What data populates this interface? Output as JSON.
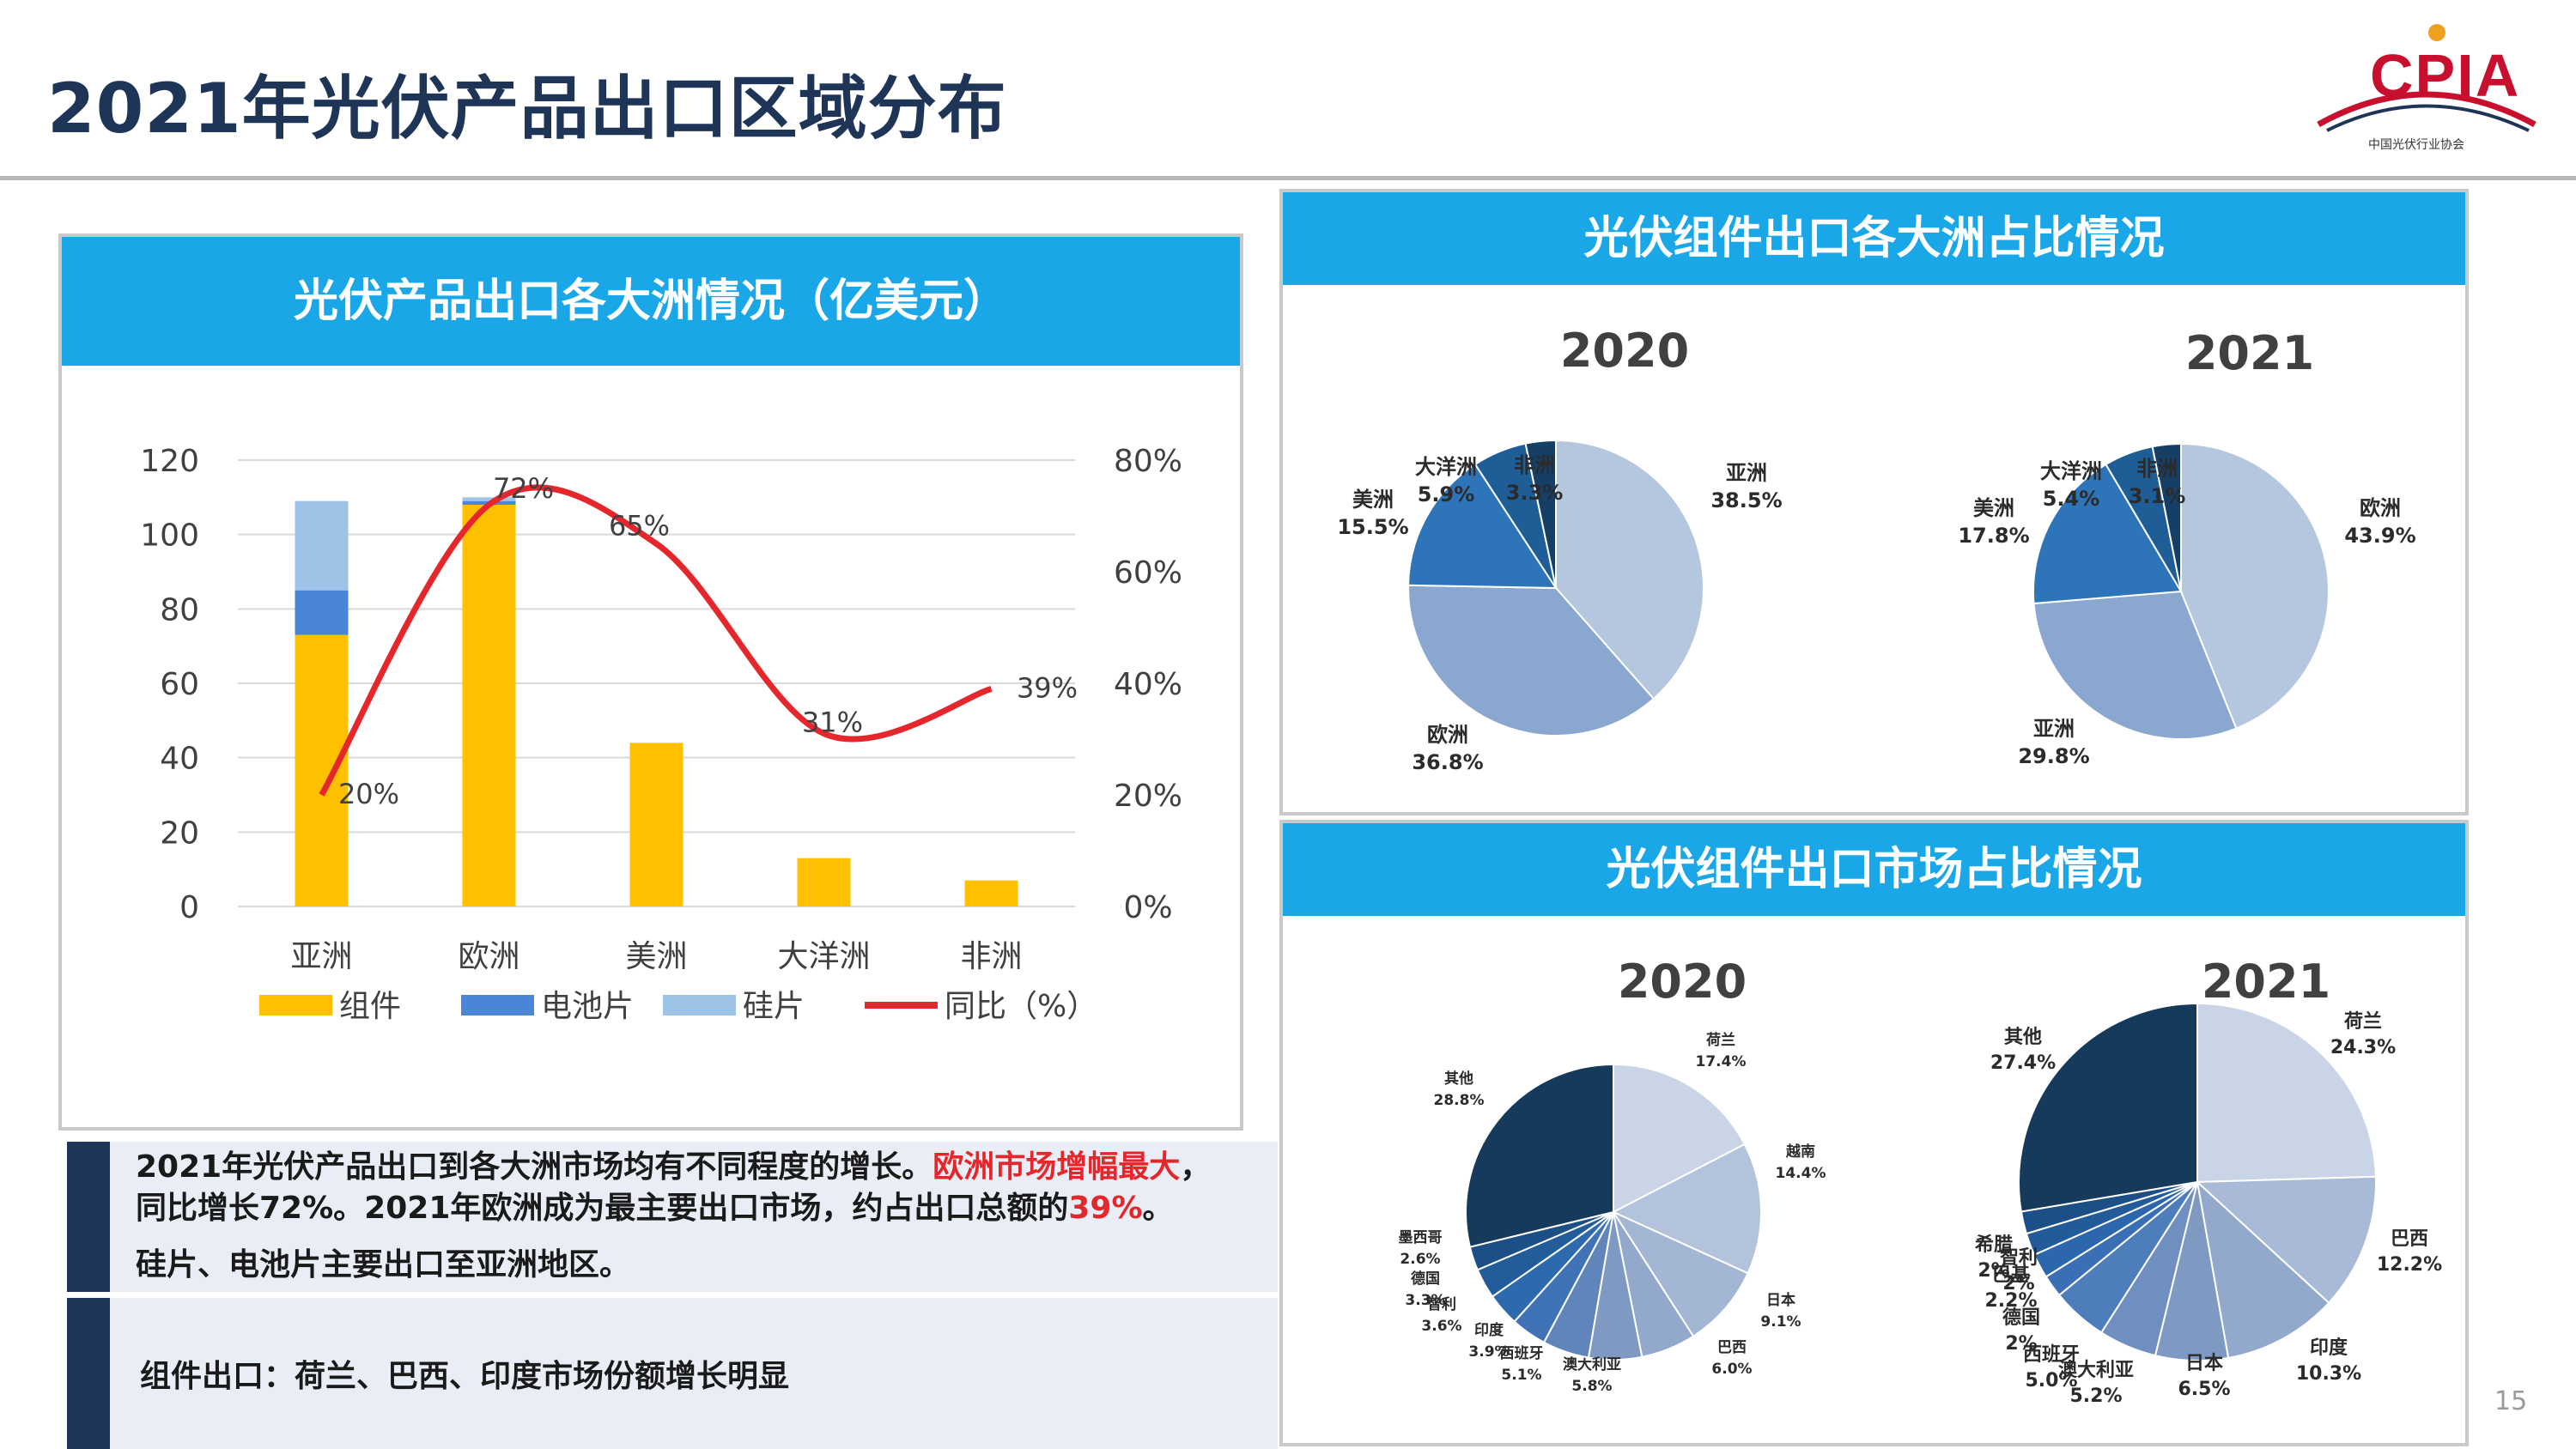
{
  "page": {
    "title": "2021年光伏产品出口区域分布",
    "page_number": "15"
  },
  "logo": {
    "text": "CPIA",
    "subtitle": "中国光伏行业协会"
  },
  "panels": {
    "left_header": "光伏产品出口各大洲情况（亿美元）",
    "top_right_header": "光伏组件出口各大洲占比情况",
    "bottom_right_header": "光伏组件出口市场占比情况"
  },
  "colors": {
    "header_blue": "#1aa7e8",
    "navy": "#1f3557",
    "module": "#ffc000",
    "cell": "#4a86d8",
    "wafer": "#9dc3e6",
    "yoy_line": "#e5262b",
    "highlight_red": "#e5262b"
  },
  "notes": {
    "line1_a": "2021年光伏产品出口到各大洲市场均有不同程度的增长。",
    "line1_red": "欧洲市场增幅最大",
    "line1_b": "，",
    "line2_a": "同比增长72%。2021年欧洲成为最主要出口市场，约占出口总额的",
    "line2_red": "39%",
    "line2_b": "。",
    "line3": "硅片、电池片主要出口至亚洲地区。",
    "line4": "组件出口：荷兰、巴西、印度市场份额增长明显"
  },
  "chart_data": [
    {
      "type": "bar",
      "stacked": true,
      "title": "光伏产品出口各大洲情况（亿美元）",
      "categories": [
        "亚洲",
        "欧洲",
        "美洲",
        "大洋洲",
        "非洲"
      ],
      "series": [
        {
          "name": "组件",
          "values": [
            73,
            108,
            44,
            13,
            7
          ],
          "color": "#ffc000"
        },
        {
          "name": "电池片",
          "values": [
            12,
            1,
            0,
            0,
            0
          ],
          "color": "#4a86d8"
        },
        {
          "name": "硅片",
          "values": [
            24,
            1,
            0,
            0,
            0
          ],
          "color": "#9dc3e6"
        }
      ],
      "line_series": {
        "name": "同比（%）",
        "axis": "right",
        "values": [
          20,
          72,
          65,
          31,
          39
        ],
        "labels": [
          "20%",
          "72%",
          "65%",
          "31%",
          "39%"
        ],
        "color": "#e5262b"
      },
      "ylim": [
        0,
        120
      ],
      "y_ticks": [
        "0",
        "20",
        "40",
        "60",
        "80",
        "100",
        "120"
      ],
      "y2lim": [
        0,
        80
      ],
      "y2_ticks": [
        "0%",
        "20%",
        "40%",
        "60%",
        "80%"
      ],
      "legend": [
        "组件",
        "电池片",
        "硅片",
        "同比（%）"
      ],
      "legend_position": "bottom",
      "grid": true
    },
    {
      "type": "pie",
      "title": "2020",
      "slices": [
        {
          "label": "亚洲",
          "value_label": "38.5%",
          "value": 38.5,
          "color": "#b5c7df"
        },
        {
          "label": "欧洲",
          "value_label": "36.8%",
          "value": 36.8,
          "color": "#8aa7cf"
        },
        {
          "label": "美洲",
          "value_label": "15.5%",
          "value": 15.5,
          "color": "#2d74b8"
        },
        {
          "label": "大洋洲",
          "value_label": "5.9%",
          "value": 5.9,
          "color": "#1f5d96"
        },
        {
          "label": "非洲",
          "value_label": "3.3%",
          "value": 3.3,
          "color": "#163f66"
        }
      ]
    },
    {
      "type": "pie",
      "title": "2021",
      "slices": [
        {
          "label": "欧洲",
          "value_label": "43.9%",
          "value": 43.9,
          "color": "#b5c7df"
        },
        {
          "label": "亚洲",
          "value_label": "29.8%",
          "value": 29.8,
          "color": "#8aa7cf"
        },
        {
          "label": "美洲",
          "value_label": "17.8%",
          "value": 17.8,
          "color": "#2d74b8"
        },
        {
          "label": "大洋洲",
          "value_label": "5.4%",
          "value": 5.4,
          "color": "#1f5d96"
        },
        {
          "label": "非洲",
          "value_label": "3.1%",
          "value": 3.1,
          "color": "#163f66"
        }
      ]
    },
    {
      "type": "pie",
      "title": "2020",
      "slices": [
        {
          "label": "荷兰",
          "value_label": "17.4%",
          "value": 17.4,
          "color": "#c9d4e6"
        },
        {
          "label": "越南",
          "value_label": "14.4%",
          "value": 14.4,
          "color": "#b3c3dc"
        },
        {
          "label": "日本",
          "value_label": "9.1%",
          "value": 9.1,
          "color": "#a3b6d4"
        },
        {
          "label": "巴西",
          "value_label": "6.0%",
          "value": 6.0,
          "color": "#93a9cc"
        },
        {
          "label": "澳大利亚",
          "value_label": "5.8%",
          "value": 5.8,
          "color": "#7f9ac2"
        },
        {
          "label": "西班牙",
          "value_label": "5.1%",
          "value": 5.1,
          "color": "#5f85bb"
        },
        {
          "label": "印度",
          "value_label": "3.9%",
          "value": 3.9,
          "color": "#3f73b5"
        },
        {
          "label": "智利",
          "value_label": "3.6%",
          "value": 3.6,
          "color": "#2d6aad"
        },
        {
          "label": "德国",
          "value_label": "3.3%",
          "value": 3.3,
          "color": "#235c9a"
        },
        {
          "label": "墨西哥",
          "value_label": "2.6%",
          "value": 2.6,
          "color": "#1b4f86"
        },
        {
          "label": "其他",
          "value_label": "28.8%",
          "value": 28.8,
          "color": "#163a5c"
        }
      ]
    },
    {
      "type": "pie",
      "title": "2021",
      "slices": [
        {
          "label": "荷兰",
          "value_label": "24.3%",
          "value": 24.3,
          "color": "#c9d4e6"
        },
        {
          "label": "巴西",
          "value_label": "12.2%",
          "value": 12.2,
          "color": "#a8bad7"
        },
        {
          "label": "印度",
          "value_label": "10.3%",
          "value": 10.3,
          "color": "#93a9cc"
        },
        {
          "label": "日本",
          "value_label": "6.5%",
          "value": 6.5,
          "color": "#7f9ac2"
        },
        {
          "label": "澳大利亚",
          "value_label": "5.2%",
          "value": 5.2,
          "color": "#6f8fc0"
        },
        {
          "label": "西班牙",
          "value_label": "5.0%",
          "value": 5.0,
          "color": "#4e7dbc"
        },
        {
          "label": "德国",
          "value_label": "2%",
          "value": 2.0,
          "color": "#3a6fb5"
        },
        {
          "label": "巴基",
          "value_label": "2.2%",
          "value": 2.2,
          "color": "#2c66ad"
        },
        {
          "label": "智利",
          "value_label": "2%",
          "value": 2.0,
          "color": "#225a9a"
        },
        {
          "label": "希腊",
          "value_label": "2%",
          "value": 2.0,
          "color": "#1b4f86"
        },
        {
          "label": "其他",
          "value_label": "27.4%",
          "value": 27.4,
          "color": "#163a5c"
        }
      ]
    }
  ]
}
